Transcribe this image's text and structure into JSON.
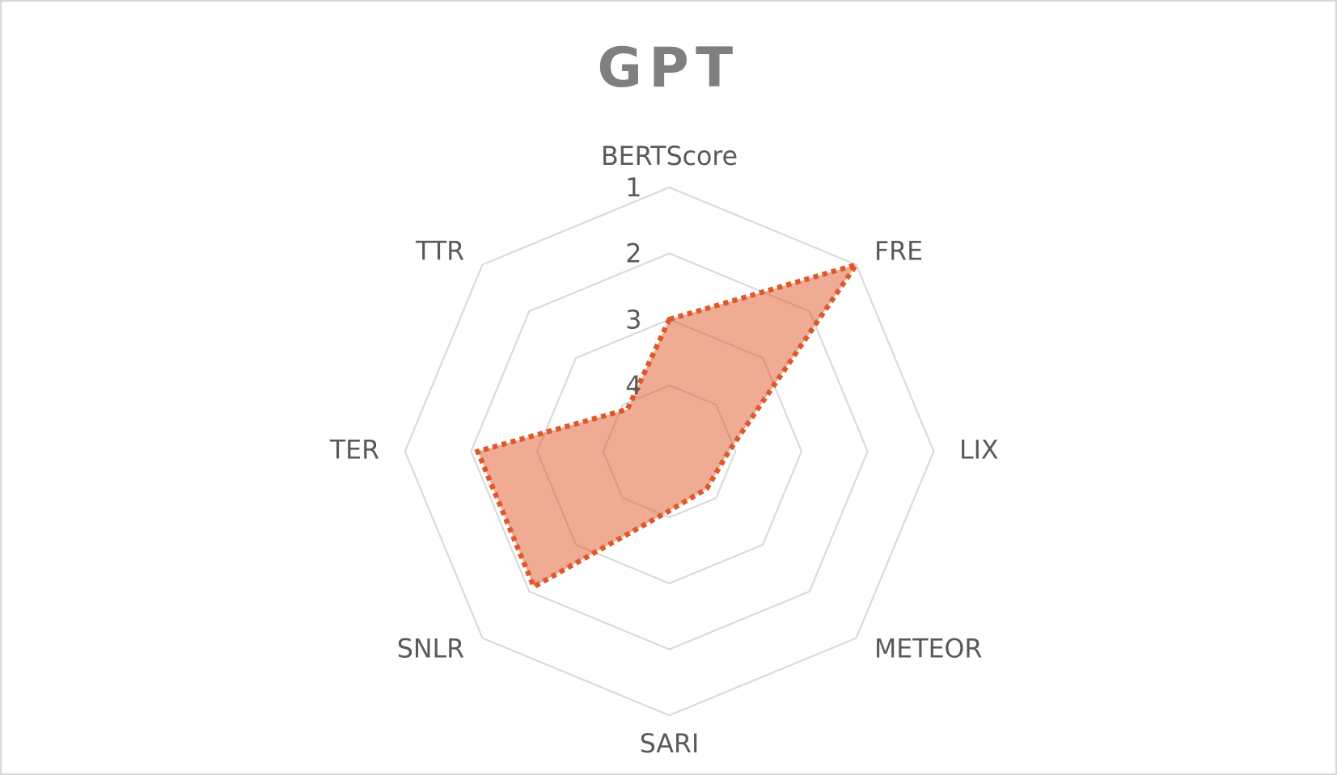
{
  "chart_data": {
    "type": "radar",
    "title": "GPT",
    "categories": [
      "BERTScore",
      "FRE",
      "LIX",
      "METEOR",
      "SARI",
      "SNLR",
      "TER",
      "TTR"
    ],
    "series": [
      {
        "name": "GPT",
        "color": "#e0582a",
        "values": [
          3,
          1,
          4.1,
          4.2,
          4.1,
          2.1,
          2.1,
          4.1
        ]
      }
    ],
    "ylim": [
      5,
      1
    ],
    "yticks": [
      1,
      2,
      3,
      4
    ],
    "grid": true
  }
}
